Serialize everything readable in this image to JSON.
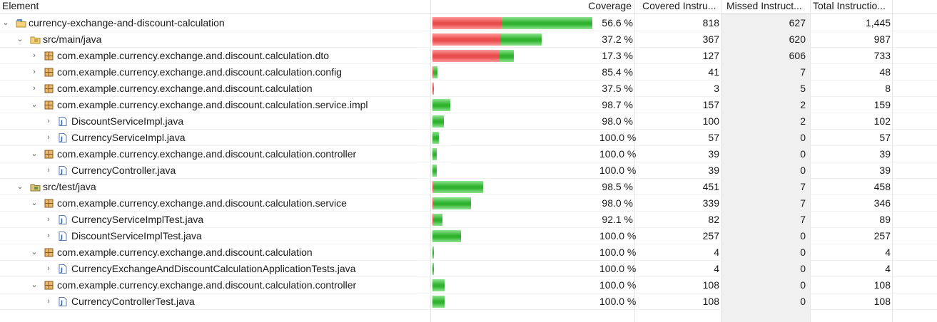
{
  "columns": {
    "element": "Element",
    "coverage": "Coverage",
    "covered": "Covered Instru...",
    "missed": "Missed Instruct...",
    "total": "Total Instructio..."
  },
  "colors": {
    "covered": "#2fb32f",
    "missed": "#e84c4c"
  },
  "rows": [
    {
      "name": "currency-exchange-and-discount-calculation",
      "icon": "project-icon",
      "expander": "expanded",
      "coverage": "56.6 %",
      "covered": "818",
      "missed": "627",
      "total": "1,445"
    },
    {
      "name": "src/main/java",
      "icon": "source-folder-icon",
      "expander": "expanded",
      "coverage": "37.2 %",
      "covered": "367",
      "missed": "620",
      "total": "987"
    },
    {
      "name": "com.example.currency.exchange.and.discount.calculation.dto",
      "icon": "package-icon",
      "expander": "collapsed",
      "coverage": "17.3 %",
      "covered": "127",
      "missed": "606",
      "total": "733"
    },
    {
      "name": "com.example.currency.exchange.and.discount.calculation.config",
      "icon": "package-icon",
      "expander": "collapsed",
      "coverage": "85.4 %",
      "covered": "41",
      "missed": "7",
      "total": "48"
    },
    {
      "name": "com.example.currency.exchange.and.discount.calculation",
      "icon": "package-icon",
      "expander": "collapsed",
      "coverage": "37.5 %",
      "covered": "3",
      "missed": "5",
      "total": "8"
    },
    {
      "name": "com.example.currency.exchange.and.discount.calculation.service.impl",
      "icon": "package-icon",
      "expander": "expanded",
      "coverage": "98.7 %",
      "covered": "157",
      "missed": "2",
      "total": "159"
    },
    {
      "name": "DiscountServiceImpl.java",
      "icon": "java-file-icon",
      "expander": "collapsed",
      "coverage": "98.0 %",
      "covered": "100",
      "missed": "2",
      "total": "102"
    },
    {
      "name": "CurrencyServiceImpl.java",
      "icon": "java-file-icon",
      "expander": "collapsed",
      "coverage": "100.0 %",
      "covered": "57",
      "missed": "0",
      "total": "57"
    },
    {
      "name": "com.example.currency.exchange.and.discount.calculation.controller",
      "icon": "package-icon",
      "expander": "expanded",
      "coverage": "100.0 %",
      "covered": "39",
      "missed": "0",
      "total": "39"
    },
    {
      "name": "CurrencyController.java",
      "icon": "java-file-icon",
      "expander": "collapsed",
      "coverage": "100.0 %",
      "covered": "39",
      "missed": "0",
      "total": "39"
    },
    {
      "name": "src/test/java",
      "icon": "test-folder-icon",
      "expander": "expanded",
      "coverage": "98.5 %",
      "covered": "451",
      "missed": "7",
      "total": "458"
    },
    {
      "name": "com.example.currency.exchange.and.discount.calculation.service",
      "icon": "package-icon",
      "expander": "expanded",
      "coverage": "98.0 %",
      "covered": "339",
      "missed": "7",
      "total": "346"
    },
    {
      "name": "CurrencyServiceImplTest.java",
      "icon": "java-file-icon",
      "expander": "collapsed",
      "coverage": "92.1 %",
      "covered": "82",
      "missed": "7",
      "total": "89"
    },
    {
      "name": "DiscountServiceImplTest.java",
      "icon": "java-file-icon",
      "expander": "collapsed",
      "coverage": "100.0 %",
      "covered": "257",
      "missed": "0",
      "total": "257"
    },
    {
      "name": "com.example.currency.exchange.and.discount.calculation",
      "icon": "package-icon",
      "expander": "expanded",
      "coverage": "100.0 %",
      "covered": "4",
      "missed": "0",
      "total": "4"
    },
    {
      "name": "CurrencyExchangeAndDiscountCalculationApplicationTests.java",
      "icon": "java-file-icon",
      "expander": "collapsed",
      "coverage": "100.0 %",
      "covered": "4",
      "missed": "0",
      "total": "4"
    },
    {
      "name": "com.example.currency.exchange.and.discount.calculation.controller",
      "icon": "package-icon",
      "expander": "expanded",
      "coverage": "100.0 %",
      "covered": "108",
      "missed": "0",
      "total": "108"
    },
    {
      "name": "CurrencyControllerTest.java",
      "icon": "java-file-icon",
      "expander": "collapsed",
      "coverage": "100.0 %",
      "covered": "108",
      "missed": "0",
      "total": "108"
    }
  ]
}
